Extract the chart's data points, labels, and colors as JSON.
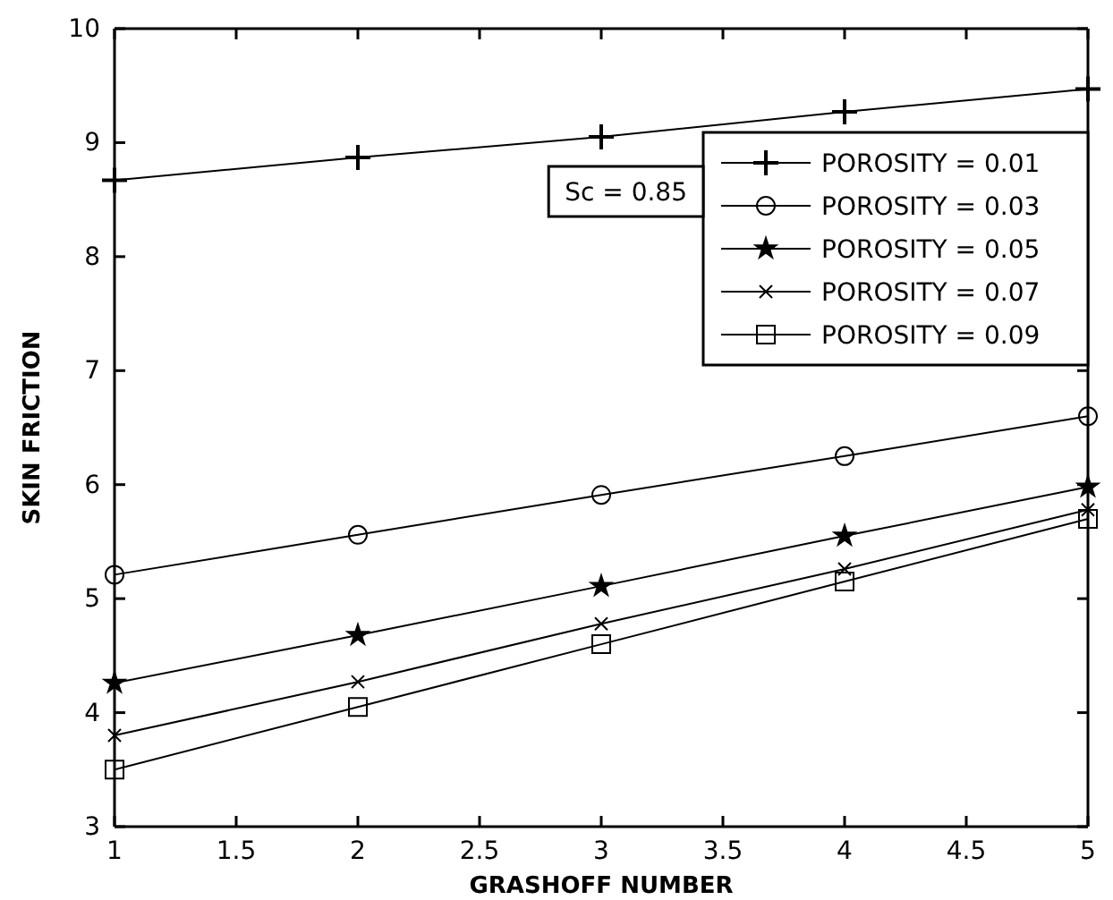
{
  "chart_data": {
    "type": "line",
    "xlabel": "GRASHOFF NUMBER",
    "ylabel": "SKIN FRICTION",
    "x": [
      1,
      2,
      3,
      4,
      5
    ],
    "xlim": [
      1,
      5
    ],
    "xticks": [
      1,
      1.5,
      2,
      2.5,
      3,
      3.5,
      4,
      4.5,
      5
    ],
    "ylim": [
      3,
      10
    ],
    "yticks": [
      3,
      4,
      5,
      6,
      7,
      8,
      9,
      10
    ],
    "legend": "top right",
    "grid": false,
    "line_style": "solid",
    "annotations": [
      "Sc = 0.85"
    ],
    "series": [
      {
        "name": "POROSITY = 0.01",
        "color": "#000000",
        "marker": "cross",
        "values": [
          8.67,
          8.87,
          9.05,
          9.27,
          9.47
        ]
      },
      {
        "name": "POROSITY = 0.03",
        "color": "#000000",
        "marker": "circle",
        "values": [
          5.21,
          5.56,
          5.91,
          6.25,
          6.6
        ]
      },
      {
        "name": "POROSITY = 0.05",
        "color": "#000000",
        "marker": "star",
        "values": [
          4.26,
          4.68,
          5.11,
          5.55,
          5.98
        ]
      },
      {
        "name": "POROSITY = 0.07",
        "color": "#000000",
        "marker": "x",
        "values": [
          3.8,
          4.27,
          4.78,
          5.26,
          5.78
        ]
      },
      {
        "name": "POROSITY = 0.09",
        "color": "#000000",
        "marker": "square",
        "values": [
          3.5,
          4.05,
          4.6,
          5.15,
          5.7
        ]
      }
    ]
  }
}
